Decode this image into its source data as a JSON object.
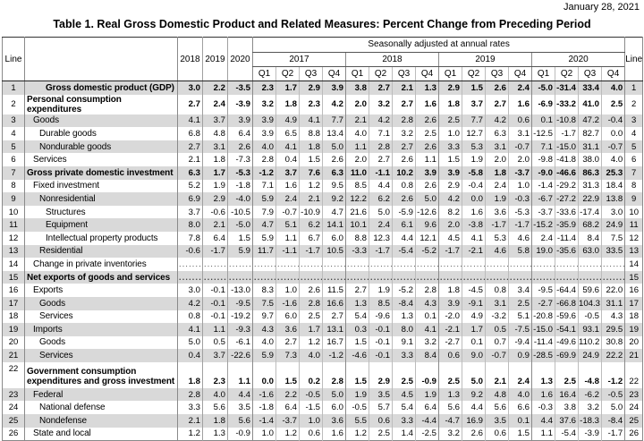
{
  "page": {
    "date": "January 28, 2021",
    "title": "Table 1. Real Gross Domestic Product and Related Measures: Percent Change from Preceding Period"
  },
  "table": {
    "header": {
      "line_label": "Line",
      "annual_years": [
        "2018",
        "2019",
        "2020"
      ],
      "saar_label": "Seasonally adjusted at annual rates",
      "quarter_years": [
        "2017",
        "2018",
        "2019",
        "2020"
      ],
      "quarters": [
        "Q1",
        "Q2",
        "Q3",
        "Q4"
      ]
    },
    "dotted_leader": ".........",
    "rows": [
      {
        "line": 1,
        "label": "Gross domestic product (GDP)",
        "indent": 3,
        "bold": true,
        "annual": [
          "3.0",
          "2.2",
          "-3.5"
        ],
        "q": [
          "2.3",
          "1.7",
          "2.9",
          "3.9",
          "3.8",
          "2.7",
          "2.1",
          "1.3",
          "2.9",
          "1.5",
          "2.6",
          "2.4",
          "-5.0",
          "-31.4",
          "33.4",
          "4.0"
        ]
      },
      {
        "line": 2,
        "label": "Personal consumption expenditures",
        "indent": 0,
        "bold": true,
        "annual": [
          "2.7",
          "2.4",
          "-3.9"
        ],
        "q": [
          "3.2",
          "1.8",
          "2.3",
          "4.2",
          "2.0",
          "3.2",
          "2.7",
          "1.6",
          "1.8",
          "3.7",
          "2.7",
          "1.6",
          "-6.9",
          "-33.2",
          "41.0",
          "2.5"
        ]
      },
      {
        "line": 3,
        "label": "Goods",
        "indent": 1,
        "annual": [
          "4.1",
          "3.7",
          "3.9"
        ],
        "q": [
          "3.9",
          "4.9",
          "4.1",
          "7.7",
          "2.1",
          "4.2",
          "2.8",
          "2.6",
          "2.5",
          "7.7",
          "4.2",
          "0.6",
          "0.1",
          "-10.8",
          "47.2",
          "-0.4"
        ]
      },
      {
        "line": 4,
        "label": "Durable goods",
        "indent": 2,
        "annual": [
          "6.8",
          "4.8",
          "6.4"
        ],
        "q": [
          "3.9",
          "6.5",
          "8.8",
          "13.4",
          "4.0",
          "7.1",
          "3.2",
          "2.5",
          "1.0",
          "12.7",
          "6.3",
          "3.1",
          "-12.5",
          "-1.7",
          "82.7",
          "0.0"
        ]
      },
      {
        "line": 5,
        "label": "Nondurable goods",
        "indent": 2,
        "annual": [
          "2.7",
          "3.1",
          "2.6"
        ],
        "q": [
          "4.0",
          "4.1",
          "1.8",
          "5.0",
          "1.1",
          "2.8",
          "2.7",
          "2.6",
          "3.3",
          "5.3",
          "3.1",
          "-0.7",
          "7.1",
          "-15.0",
          "31.1",
          "-0.7"
        ]
      },
      {
        "line": 6,
        "label": "Services",
        "indent": 1,
        "annual": [
          "2.1",
          "1.8",
          "-7.3"
        ],
        "q": [
          "2.8",
          "0.4",
          "1.5",
          "2.6",
          "2.0",
          "2.7",
          "2.6",
          "1.1",
          "1.5",
          "1.9",
          "2.0",
          "2.0",
          "-9.8",
          "-41.8",
          "38.0",
          "4.0"
        ]
      },
      {
        "line": 7,
        "label": "Gross private domestic investment",
        "indent": 0,
        "bold": true,
        "annual": [
          "6.3",
          "1.7",
          "-5.3"
        ],
        "q": [
          "-1.2",
          "3.7",
          "7.6",
          "6.3",
          "11.0",
          "-1.1",
          "10.2",
          "3.9",
          "3.9",
          "-5.8",
          "1.8",
          "-3.7",
          "-9.0",
          "-46.6",
          "86.3",
          "25.3"
        ]
      },
      {
        "line": 8,
        "label": "Fixed investment",
        "indent": 1,
        "annual": [
          "5.2",
          "1.9",
          "-1.8"
        ],
        "q": [
          "7.1",
          "1.6",
          "1.2",
          "9.5",
          "8.5",
          "4.4",
          "0.8",
          "2.6",
          "2.9",
          "-0.4",
          "2.4",
          "1.0",
          "-1.4",
          "-29.2",
          "31.3",
          "18.4"
        ]
      },
      {
        "line": 9,
        "label": "Nonresidential",
        "indent": 2,
        "annual": [
          "6.9",
          "2.9",
          "-4.0"
        ],
        "q": [
          "5.9",
          "2.4",
          "2.1",
          "9.2",
          "12.2",
          "6.2",
          "2.6",
          "5.0",
          "4.2",
          "0.0",
          "1.9",
          "-0.3",
          "-6.7",
          "-27.2",
          "22.9",
          "13.8"
        ]
      },
      {
        "line": 10,
        "label": "Structures",
        "indent": 3,
        "annual": [
          "3.7",
          "-0.6",
          "-10.5"
        ],
        "q": [
          "7.9",
          "-0.7",
          "-10.9",
          "4.7",
          "21.6",
          "5.0",
          "-5.9",
          "-12.6",
          "8.2",
          "1.6",
          "3.6",
          "-5.3",
          "-3.7",
          "-33.6",
          "-17.4",
          "3.0"
        ]
      },
      {
        "line": 11,
        "label": "Equipment",
        "indent": 3,
        "annual": [
          "8.0",
          "2.1",
          "-5.0"
        ],
        "q": [
          "4.7",
          "5.1",
          "6.2",
          "14.1",
          "10.1",
          "2.4",
          "6.1",
          "9.6",
          "2.0",
          "-3.8",
          "-1.7",
          "-1.7",
          "-15.2",
          "-35.9",
          "68.2",
          "24.9"
        ]
      },
      {
        "line": 12,
        "label": "Intellectual property products",
        "indent": 3,
        "annual": [
          "7.8",
          "6.4",
          "1.5"
        ],
        "q": [
          "5.9",
          "1.1",
          "6.7",
          "6.0",
          "8.8",
          "12.3",
          "4.4",
          "12.1",
          "4.5",
          "4.1",
          "5.3",
          "4.6",
          "2.4",
          "-11.4",
          "8.4",
          "7.5"
        ]
      },
      {
        "line": 13,
        "label": "Residential",
        "indent": 2,
        "annual": [
          "-0.6",
          "-1.7",
          "5.9"
        ],
        "q": [
          "11.7",
          "-1.1",
          "-1.7",
          "10.5",
          "-3.3",
          "-1.7",
          "-5.4",
          "-5.2",
          "-1.7",
          "-2.1",
          "4.6",
          "5.8",
          "19.0",
          "-35.6",
          "63.0",
          "33.5"
        ]
      },
      {
        "line": 14,
        "label": "Change in private inventories",
        "indent": 1,
        "dotted": true,
        "annual": [
          "",
          "",
          ""
        ],
        "q": [
          "",
          "",
          "",
          "",
          "",
          "",
          "",
          "",
          "",
          "",
          "",
          "",
          "",
          "",
          "",
          ""
        ]
      },
      {
        "line": 15,
        "label": "Net exports of goods and services",
        "indent": 0,
        "bold": true,
        "dotted": true,
        "annual": [
          "",
          "",
          ""
        ],
        "q": [
          "",
          "",
          "",
          "",
          "",
          "",
          "",
          "",
          "",
          "",
          "",
          "",
          "",
          "",
          "",
          ""
        ]
      },
      {
        "line": 16,
        "label": "Exports",
        "indent": 1,
        "annual": [
          "3.0",
          "-0.1",
          "-13.0"
        ],
        "q": [
          "8.3",
          "1.0",
          "2.6",
          "11.5",
          "2.7",
          "1.9",
          "-5.2",
          "2.8",
          "1.8",
          "-4.5",
          "0.8",
          "3.4",
          "-9.5",
          "-64.4",
          "59.6",
          "22.0"
        ]
      },
      {
        "line": 17,
        "label": "Goods",
        "indent": 2,
        "annual": [
          "4.2",
          "-0.1",
          "-9.5"
        ],
        "q": [
          "7.5",
          "-1.6",
          "2.8",
          "16.6",
          "1.3",
          "8.5",
          "-8.4",
          "4.3",
          "3.9",
          "-9.1",
          "3.1",
          "2.5",
          "-2.7",
          "-66.8",
          "104.3",
          "31.1"
        ]
      },
      {
        "line": 18,
        "label": "Services",
        "indent": 2,
        "annual": [
          "0.8",
          "-0.1",
          "-19.2"
        ],
        "q": [
          "9.7",
          "6.0",
          "2.5",
          "2.7",
          "5.4",
          "-9.6",
          "1.3",
          "0.1",
          "-2.0",
          "4.9",
          "-3.2",
          "5.1",
          "-20.8",
          "-59.6",
          "-0.5",
          "4.3"
        ]
      },
      {
        "line": 19,
        "label": "Imports",
        "indent": 1,
        "annual": [
          "4.1",
          "1.1",
          "-9.3"
        ],
        "q": [
          "4.3",
          "3.6",
          "1.7",
          "13.1",
          "0.3",
          "-0.1",
          "8.0",
          "4.1",
          "-2.1",
          "1.7",
          "0.5",
          "-7.5",
          "-15.0",
          "-54.1",
          "93.1",
          "29.5"
        ]
      },
      {
        "line": 20,
        "label": "Goods",
        "indent": 2,
        "annual": [
          "5.0",
          "0.5",
          "-6.1"
        ],
        "q": [
          "4.0",
          "2.7",
          "1.2",
          "16.7",
          "1.5",
          "-0.1",
          "9.1",
          "3.2",
          "-2.7",
          "0.1",
          "0.7",
          "-9.4",
          "-11.4",
          "-49.6",
          "110.2",
          "30.8"
        ]
      },
      {
        "line": 21,
        "label": "Services",
        "indent": 2,
        "annual": [
          "0.4",
          "3.7",
          "-22.6"
        ],
        "q": [
          "5.9",
          "7.3",
          "4.0",
          "-1.2",
          "-4.6",
          "-0.1",
          "3.3",
          "8.4",
          "0.6",
          "9.0",
          "-0.7",
          "0.9",
          "-28.5",
          "-69.9",
          "24.9",
          "22.2"
        ]
      },
      {
        "line": 22,
        "label": "Government consumption\nexpenditures and gross investment",
        "indent": 0,
        "bold": true,
        "annual": [
          "1.8",
          "2.3",
          "1.1"
        ],
        "q": [
          "0.0",
          "1.5",
          "0.2",
          "2.8",
          "1.5",
          "2.9",
          "2.5",
          "-0.9",
          "2.5",
          "5.0",
          "2.1",
          "2.4",
          "1.3",
          "2.5",
          "-4.8",
          "-1.2"
        ]
      },
      {
        "line": 23,
        "label": "Federal",
        "indent": 1,
        "annual": [
          "2.8",
          "4.0",
          "4.4"
        ],
        "q": [
          "-1.6",
          "2.2",
          "-0.5",
          "5.0",
          "1.9",
          "3.5",
          "4.5",
          "1.9",
          "1.3",
          "9.2",
          "4.8",
          "4.0",
          "1.6",
          "16.4",
          "-6.2",
          "-0.5"
        ]
      },
      {
        "line": 24,
        "label": "National defense",
        "indent": 2,
        "annual": [
          "3.3",
          "5.6",
          "3.5"
        ],
        "q": [
          "-1.8",
          "6.4",
          "-1.5",
          "6.0",
          "-0.5",
          "5.7",
          "5.4",
          "6.4",
          "5.6",
          "4.4",
          "5.6",
          "6.6",
          "-0.3",
          "3.8",
          "3.2",
          "5.0"
        ]
      },
      {
        "line": 25,
        "label": "Nondefense",
        "indent": 2,
        "annual": [
          "2.1",
          "1.8",
          "5.6"
        ],
        "q": [
          "-1.4",
          "-3.7",
          "1.0",
          "3.6",
          "5.5",
          "0.6",
          "3.3",
          "-4.4",
          "-4.7",
          "16.9",
          "3.5",
          "0.1",
          "4.4",
          "37.6",
          "-18.3",
          "-8.4"
        ]
      },
      {
        "line": 26,
        "label": "State and local",
        "indent": 1,
        "annual": [
          "1.2",
          "1.3",
          "-0.9"
        ],
        "q": [
          "1.0",
          "1.2",
          "0.6",
          "1.6",
          "1.2",
          "2.5",
          "1.4",
          "-2.5",
          "3.2",
          "2.6",
          "0.6",
          "1.5",
          "1.1",
          "-5.4",
          "-3.9",
          "-1.7"
        ]
      }
    ]
  }
}
